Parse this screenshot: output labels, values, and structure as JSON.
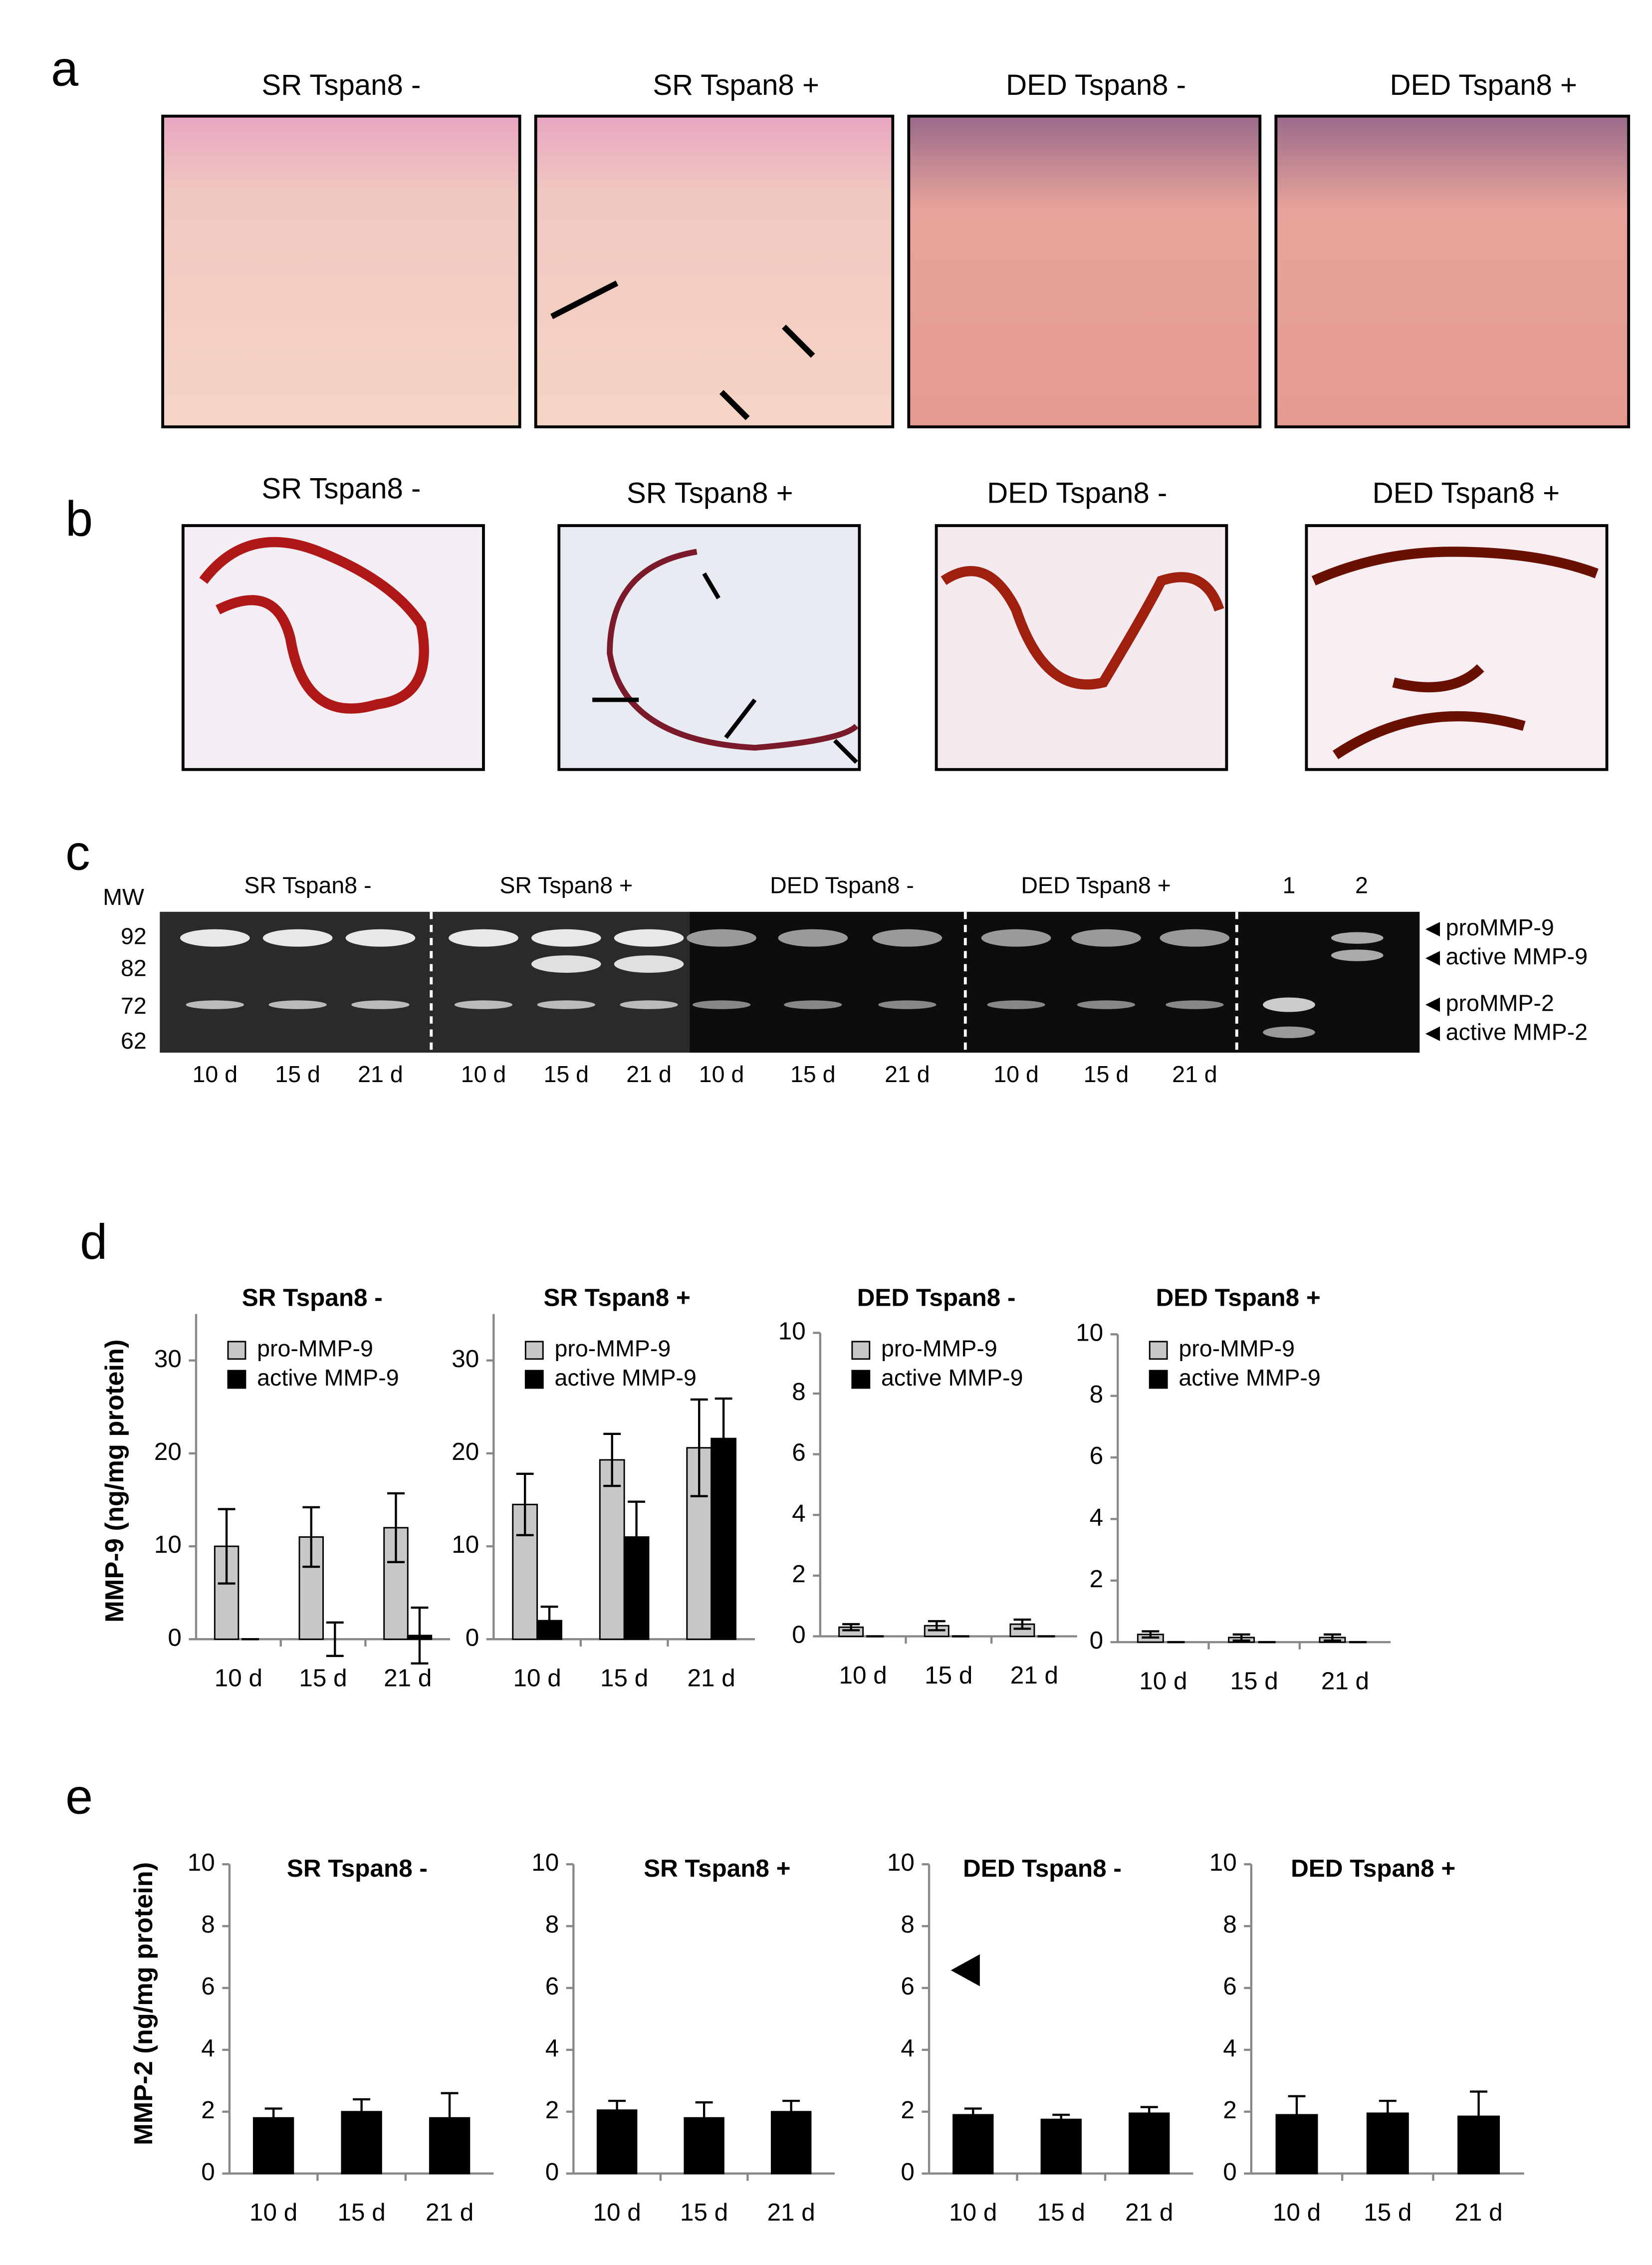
{
  "panel_labels": [
    "a",
    "b",
    "c",
    "d",
    "e"
  ],
  "histology": {
    "titles": [
      "SR Tspan8 -",
      "SR Tspan8 +",
      "DED Tspan8 -",
      "DED Tspan8 +"
    ]
  },
  "staining": {
    "titles": [
      "SR Tspan8 -",
      "SR Tspan8 +",
      "DED Tspan8 -",
      "DED Tspan8 +"
    ]
  },
  "gel": {
    "mw_label": "MW",
    "mw_markers": [
      92,
      82,
      72,
      62
    ],
    "groups": [
      "SR  Tspan8 -",
      "SR Tspan8 +",
      "DED Tspan8 -",
      "DED Tspan8 +"
    ],
    "standards": [
      1,
      2
    ],
    "lanes": [
      "10 d",
      "15 d",
      "21 d",
      "10 d",
      "15 d",
      "21 d",
      "10 d",
      "15 d",
      "21 d",
      "10 d",
      "15 d",
      "21 d"
    ],
    "bands": [
      "proMMP-9",
      "active MMP-9",
      "proMMP-2",
      "active MMP-2"
    ]
  },
  "chart_data": [
    {
      "type": "bar",
      "title": "SR  Tspan8 -",
      "y_label": "MMP-9 (ng/mg protein)",
      "categories": [
        "10 d",
        "15 d",
        "21 d"
      ],
      "series": [
        {
          "name": "pro-MMP-9",
          "color": "#c8c8c8",
          "values": [
            10,
            11,
            12
          ],
          "errors": [
            4,
            3.2,
            3.7
          ]
        },
        {
          "name": "active MMP-9",
          "color": "#000000",
          "values": [
            0,
            0,
            0.4
          ],
          "errors": [
            0,
            1.8,
            3
          ]
        }
      ],
      "ylim": [
        0,
        35
      ],
      "yticks": [
        0,
        10,
        20,
        30
      ],
      "legend": "upper left"
    },
    {
      "type": "bar",
      "title": "SR Tspan8 +",
      "categories": [
        "10 d",
        "15 d",
        "21 d"
      ],
      "series": [
        {
          "name": "pro-MMP-9",
          "color": "#c8c8c8",
          "values": [
            14.5,
            19.3,
            20.6
          ],
          "errors": [
            3.3,
            2.8,
            5.2
          ]
        },
        {
          "name": "active MMP-9",
          "color": "#000000",
          "values": [
            2,
            11,
            21.6
          ],
          "errors": [
            1.5,
            3.8,
            4.3
          ]
        }
      ],
      "ylim": [
        0,
        35
      ],
      "yticks": [
        0,
        10,
        20,
        30
      ],
      "legend": "upper left"
    },
    {
      "type": "bar",
      "title": "DED Tspan8 -",
      "categories": [
        "10 d",
        "15 d",
        "21 d"
      ],
      "series": [
        {
          "name": "pro-MMP-9",
          "color": "#c8c8c8",
          "values": [
            0.3,
            0.35,
            0.4
          ],
          "errors": [
            0.1,
            0.15,
            0.15
          ]
        },
        {
          "name": "active MMP-9",
          "color": "#000000",
          "values": [
            0,
            0,
            0
          ],
          "errors": [
            0,
            0,
            0
          ]
        }
      ],
      "ylim": [
        0,
        10
      ],
      "yticks": [
        0,
        2,
        4,
        6,
        8,
        10
      ],
      "legend": "upper left"
    },
    {
      "type": "bar",
      "title": "DED Tspan8 +",
      "categories": [
        "10 d",
        "15 d",
        "21 d"
      ],
      "series": [
        {
          "name": "pro-MMP-9",
          "color": "#c8c8c8",
          "values": [
            0.25,
            0.15,
            0.15
          ],
          "errors": [
            0.1,
            0.1,
            0.1
          ]
        },
        {
          "name": "active MMP-9",
          "color": "#000000",
          "values": [
            0,
            0,
            0
          ],
          "errors": [
            0,
            0,
            0
          ]
        }
      ],
      "ylim": [
        0,
        10
      ],
      "yticks": [
        0,
        2,
        4,
        6,
        8,
        10
      ],
      "legend": "upper left"
    },
    {
      "type": "bar",
      "title": "SR  Tspan8 -",
      "y_label": "MMP-2 (ng/mg protein)",
      "categories": [
        "10 d",
        "15 d",
        "21 d"
      ],
      "series": [
        {
          "color": "#000000",
          "values": [
            1.8,
            2.0,
            1.8
          ],
          "errors": [
            0.3,
            0.4,
            0.8
          ]
        }
      ],
      "ylim": [
        0,
        10
      ],
      "yticks": [
        0,
        2,
        4,
        6,
        8,
        10
      ]
    },
    {
      "type": "bar",
      "title": "SR Tspan8 +",
      "categories": [
        "10 d",
        "15 d",
        "21 d"
      ],
      "series": [
        {
          "color": "#000000",
          "values": [
            2.05,
            1.8,
            2.0
          ],
          "errors": [
            0.3,
            0.5,
            0.35
          ]
        }
      ],
      "ylim": [
        0,
        10
      ],
      "yticks": [
        0,
        2,
        4,
        6,
        8,
        10
      ]
    },
    {
      "type": "bar",
      "title": "DED Tspan8 -",
      "categories": [
        "10 d",
        "15 d",
        "21 d"
      ],
      "series": [
        {
          "color": "#000000",
          "values": [
            1.9,
            1.75,
            1.95
          ],
          "errors": [
            0.2,
            0.15,
            0.2
          ]
        }
      ],
      "ylim": [
        0,
        10
      ],
      "yticks": [
        0,
        2,
        4,
        6,
        8,
        10
      ]
    },
    {
      "type": "bar",
      "title": "DED Tspan8 +",
      "categories": [
        "10 d",
        "15 d",
        "21 d"
      ],
      "series": [
        {
          "color": "#000000",
          "values": [
            1.9,
            1.95,
            1.85
          ],
          "errors": [
            0.6,
            0.4,
            0.8
          ]
        }
      ],
      "ylim": [
        0,
        10
      ],
      "yticks": [
        0,
        2,
        4,
        6,
        8,
        10
      ]
    }
  ]
}
